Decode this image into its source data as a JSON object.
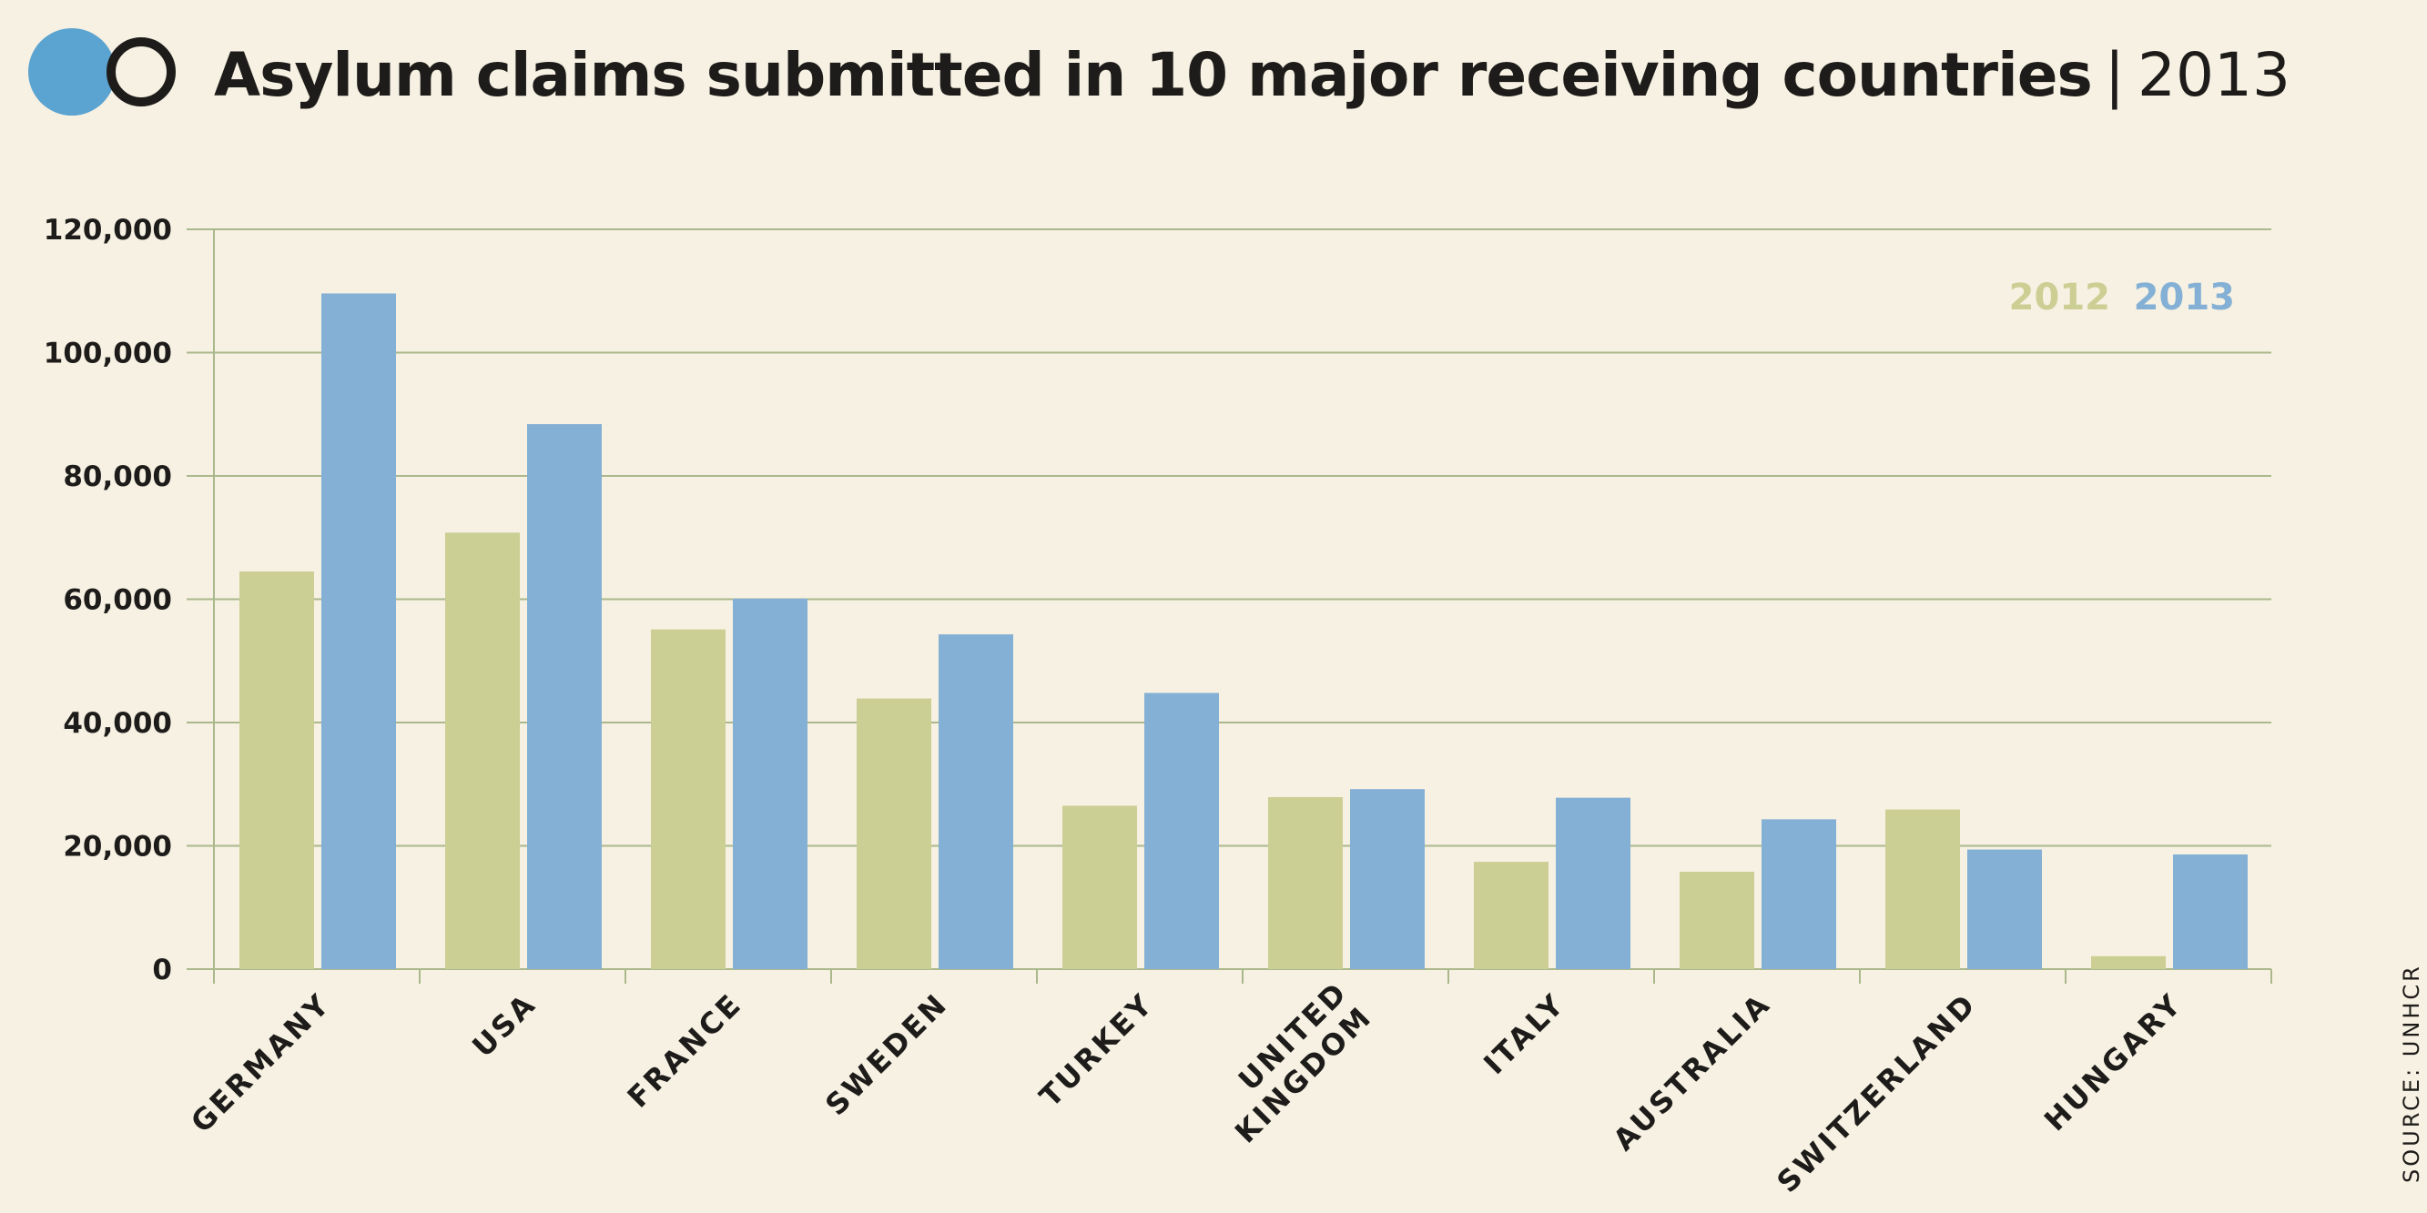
{
  "header": {
    "title": "Asylum claims submitted in 10 major receiving countries",
    "separator": "|",
    "year": "2013"
  },
  "logo": {
    "icon": "two-circles-logo-icon",
    "fill_color": "#5ba3d0",
    "ring_color": "#1e1c1a"
  },
  "source": "SOURCE: UNHCR",
  "colors": {
    "series_2012": "#cbcf94",
    "series_2013": "#84b0d5",
    "gridline": "#aab88c",
    "text": "#1e1c1a",
    "background": "#f6f1e2"
  },
  "chart_data": {
    "type": "bar",
    "title": "",
    "xlabel": "",
    "ylabel": "",
    "ylim": [
      0,
      120000
    ],
    "y_ticks": [
      0,
      20000,
      40000,
      60000,
      80000,
      100000,
      120000
    ],
    "y_tick_labels": [
      "0",
      "20,000",
      "40,000",
      "60,000",
      "80,000",
      "100,000",
      "120,000"
    ],
    "grid": true,
    "legend_position": "top-right",
    "categories": [
      "GERMANY",
      "USA",
      "FRANCE",
      "SWEDEN",
      "TURKEY",
      "UNITED KINGDOM",
      "ITALY",
      "AUSTRALIA",
      "SWITZERLAND",
      "HUNGARY"
    ],
    "series": [
      {
        "name": "2012",
        "color": "#cbcf94",
        "values": [
          64500,
          70800,
          55100,
          43900,
          26500,
          27900,
          17400,
          15800,
          25900,
          2100
        ]
      },
      {
        "name": "2013",
        "color": "#84b0d5",
        "values": [
          109600,
          88400,
          60100,
          54300,
          44800,
          29200,
          27800,
          24300,
          19400,
          18600
        ]
      }
    ]
  }
}
